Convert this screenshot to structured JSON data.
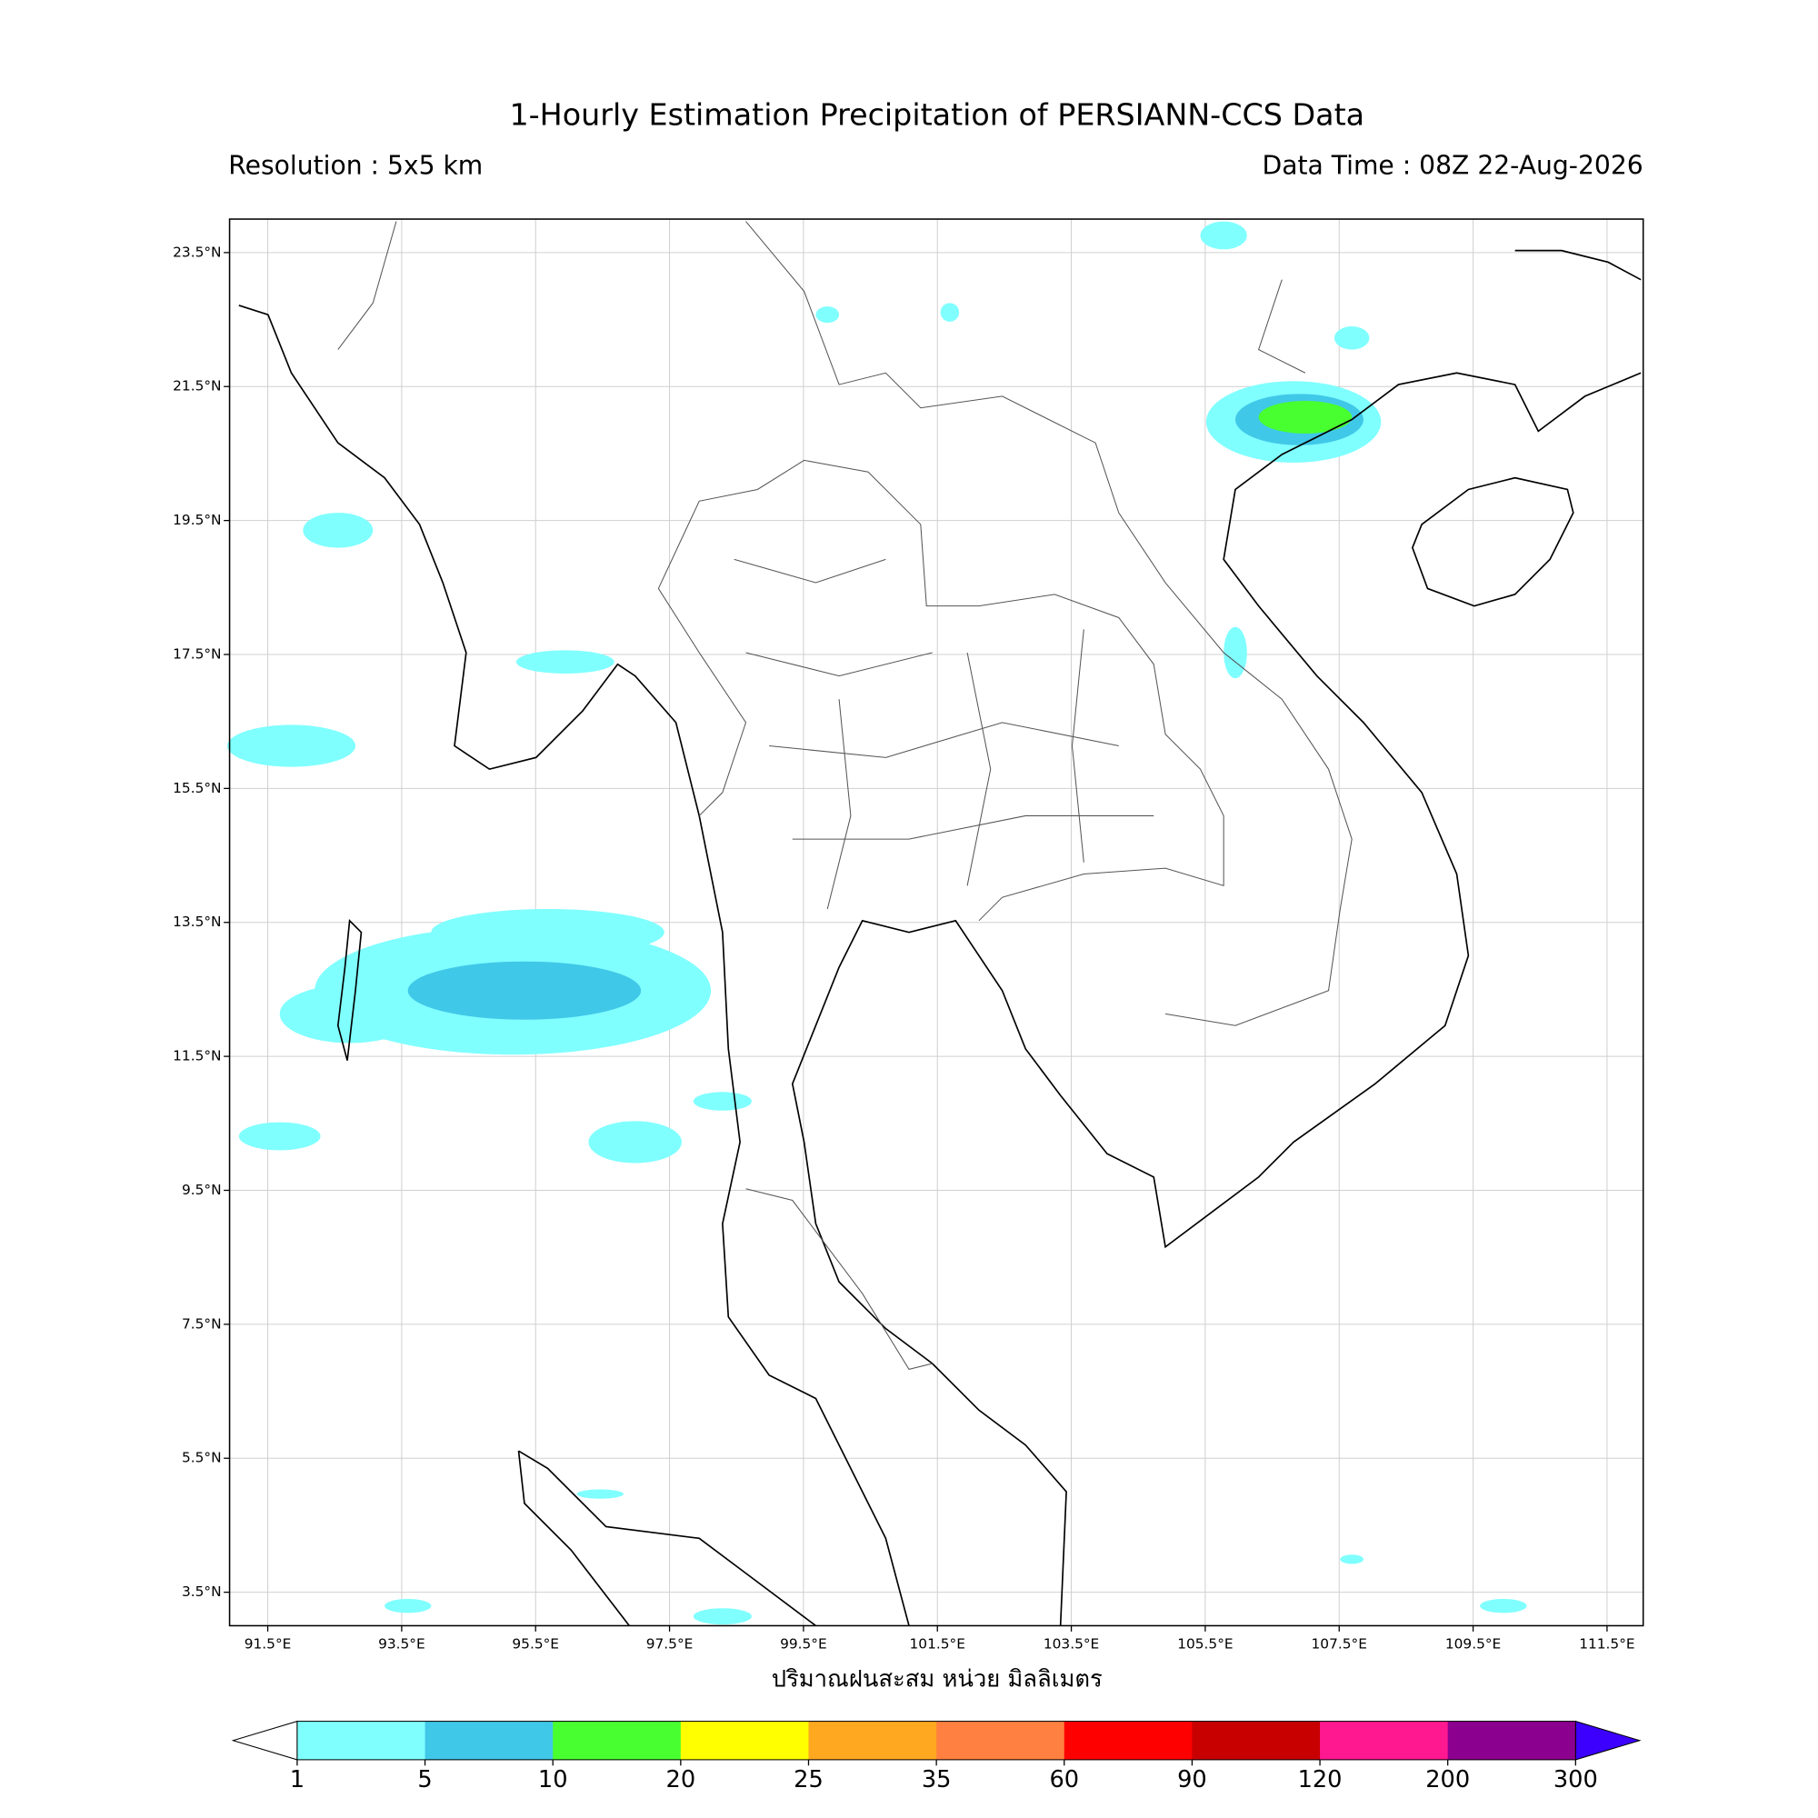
{
  "header": {
    "title": "1-Hourly Estimation Precipitation of PERSIANN-CCS Data",
    "resolution": "Resolution : 5x5 km",
    "data_time": "Data Time : 08Z 22-Aug-2026"
  },
  "map": {
    "lonlim": [
      90.93,
      112.04
    ],
    "latlim": [
      3.0,
      24.0
    ],
    "grid": true,
    "xticks": [
      {
        "value": 91.5,
        "label": "91.5°E"
      },
      {
        "value": 93.5,
        "label": "93.5°E"
      },
      {
        "value": 95.5,
        "label": "95.5°E"
      },
      {
        "value": 97.5,
        "label": "97.5°E"
      },
      {
        "value": 99.5,
        "label": "99.5°E"
      },
      {
        "value": 101.5,
        "label": "101.5°E"
      },
      {
        "value": 103.5,
        "label": "103.5°E"
      },
      {
        "value": 105.5,
        "label": "105.5°E"
      },
      {
        "value": 107.5,
        "label": "107.5°E"
      },
      {
        "value": 109.5,
        "label": "109.5°E"
      },
      {
        "value": 111.5,
        "label": "111.5°E"
      }
    ],
    "yticks": [
      {
        "value": 3.5,
        "label": "3.5°N"
      },
      {
        "value": 5.5,
        "label": "5.5°N"
      },
      {
        "value": 7.5,
        "label": "7.5°N"
      },
      {
        "value": 9.5,
        "label": "9.5°N"
      },
      {
        "value": 11.5,
        "label": "11.5°N"
      },
      {
        "value": 13.5,
        "label": "13.5°N"
      },
      {
        "value": 15.5,
        "label": "15.5°N"
      },
      {
        "value": 17.5,
        "label": "17.5°N"
      },
      {
        "value": 19.5,
        "label": "19.5°N"
      },
      {
        "value": 21.5,
        "label": "21.5°N"
      },
      {
        "value": 23.5,
        "label": "23.5°N"
      }
    ],
    "xlabel": "ปริมาณฝนสะสม หน่วย มิลลิเมตร"
  },
  "colorbar": {
    "levels": [
      1,
      5,
      10,
      20,
      25,
      35,
      60,
      90,
      120,
      200,
      300
    ],
    "colors": [
      "#80ffff",
      "#40c8e8",
      "#48ff30",
      "#ffff00",
      "#ffa820",
      "#ff8040",
      "#ff0000",
      "#c80000",
      "#ff1890",
      "#8c0090"
    ],
    "under_color": "#ffffff",
    "over_color": "#3c00ff"
  }
}
